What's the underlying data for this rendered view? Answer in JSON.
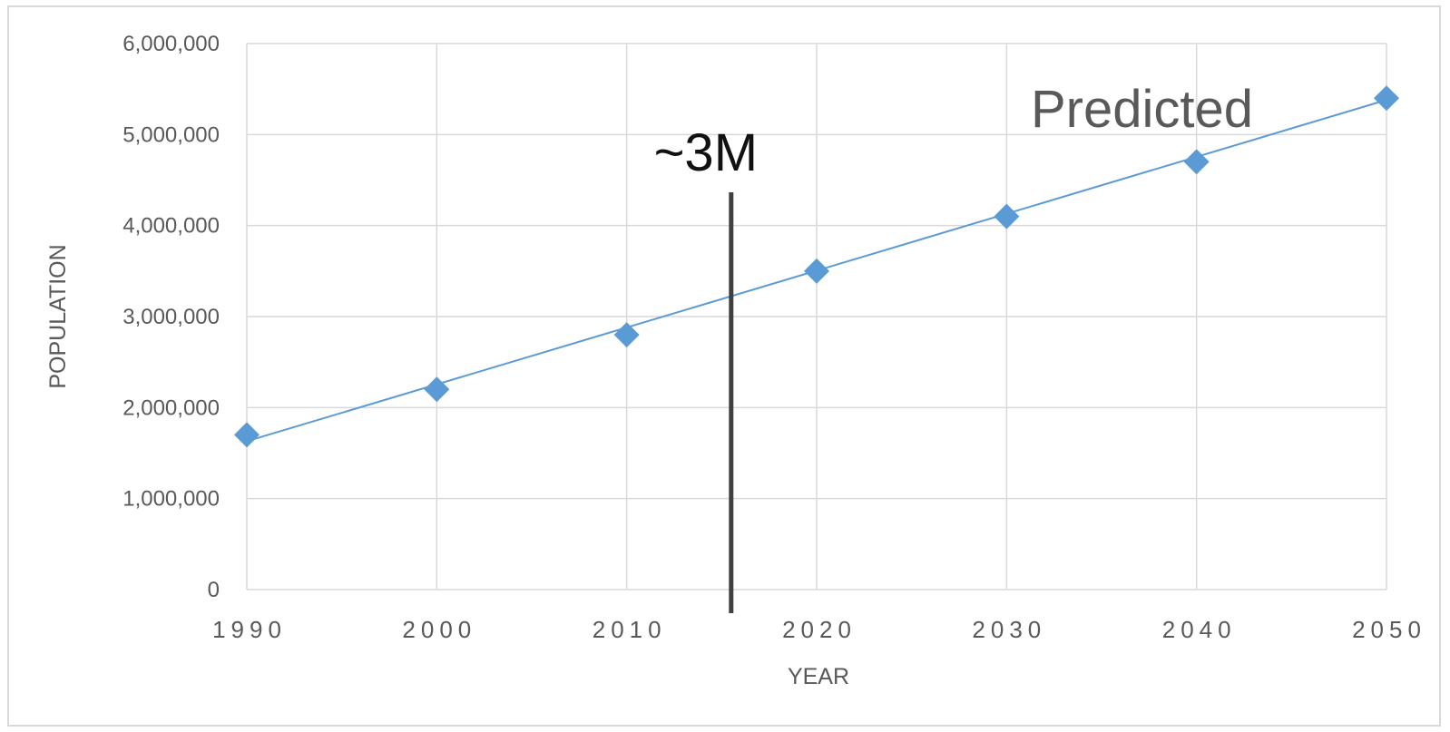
{
  "chart_data": {
    "type": "line",
    "xlabel": "YEAR",
    "ylabel": "POPULATION",
    "x": [
      1990,
      2000,
      2010,
      2020,
      2030,
      2040,
      2050
    ],
    "series": [
      {
        "values": [
          1700000,
          2200000,
          2800000,
          3500000,
          4100000,
          4700000,
          5400000
        ]
      }
    ],
    "trendline": {
      "x": [
        1990,
        2050
      ],
      "y": [
        1630000,
        5380000
      ]
    },
    "xlim": [
      1990,
      2050
    ],
    "ylim": [
      0,
      6000000
    ],
    "x_ticks": [
      "1990",
      "2000",
      "2010",
      "2020",
      "2030",
      "2040",
      "2050"
    ],
    "y_ticks": [
      "0",
      "1,000,000",
      "2,000,000",
      "3,000,000",
      "4,000,000",
      "5,000,000",
      "6,000,000"
    ],
    "y_tick_values": [
      0,
      1000000,
      2000000,
      3000000,
      4000000,
      5000000,
      6000000
    ],
    "grid": true,
    "colors": {
      "series": "#5b9bd5",
      "grid": "#d9d9d9",
      "marker_line": "#404040"
    },
    "annotations": {
      "current_label": "~3M",
      "predicted_label": "Predicted",
      "current_marker_x": 2015.5
    }
  }
}
